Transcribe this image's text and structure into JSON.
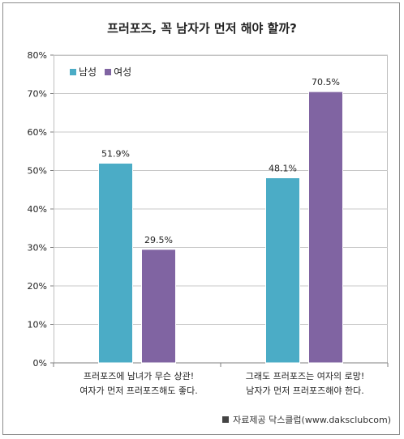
{
  "chart_data": {
    "type": "bar",
    "title": "프러포즈, 꼭 남자가 먼저 해야 할까?",
    "categories": [
      [
        "프러포즈에 남녀가 무슨 상관!",
        "여자가 먼저 프러포즈해도 좋다."
      ],
      [
        "그래도 프러포즈는 여자의 로망!",
        "남자가 먼저 프러포즈해야 한다."
      ]
    ],
    "series": [
      {
        "name": "남성",
        "values": [
          51.9,
          48.1
        ],
        "labels": [
          "51.9%",
          "48.1%"
        ],
        "color": "#4bacc6"
      },
      {
        "name": "여성",
        "values": [
          29.5,
          70.5
        ],
        "labels": [
          "29.5%",
          "70.5%"
        ],
        "color": "#8064a2"
      }
    ],
    "yticks": [
      "0%",
      "10%",
      "20%",
      "30%",
      "40%",
      "50%",
      "60%",
      "70%",
      "80%"
    ],
    "ylim": [
      0,
      80
    ],
    "grid": true,
    "legend_position": "top-left",
    "source": "자료제공 닥스클럽(www.daksclubcom)"
  }
}
